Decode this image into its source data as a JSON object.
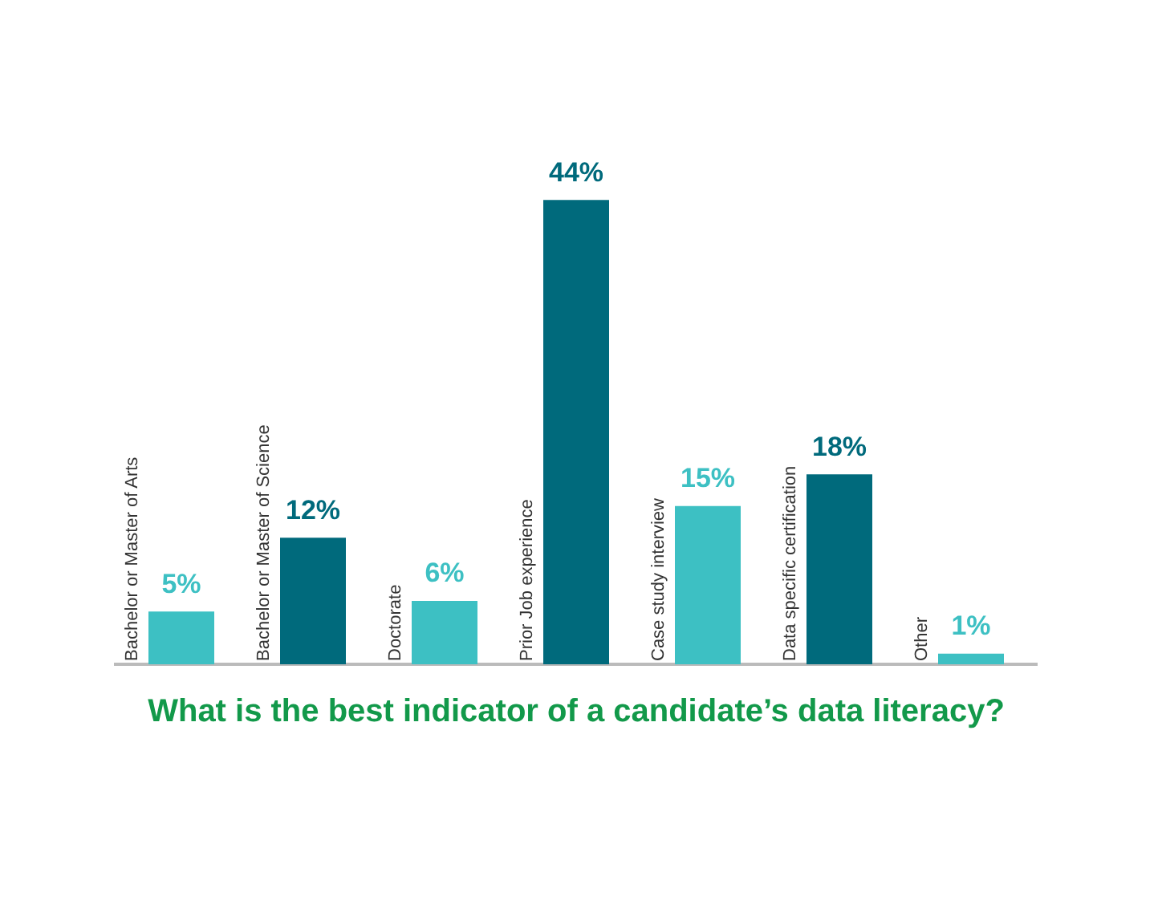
{
  "chart_data": {
    "type": "bar",
    "title": "What is the best indicator of a candidate’s data literacy?",
    "categories": [
      "Bachelor or Master of Arts",
      "Bachelor or Master of Science",
      "Doctorate",
      "Prior Job experience",
      "Case study interview",
      "Data specific certification",
      "Other"
    ],
    "values": [
      5,
      12,
      6,
      44,
      15,
      18,
      1
    ],
    "colors": [
      "#3dc0c3",
      "#006a7c",
      "#3dc0c3",
      "#006a7c",
      "#3dc0c3",
      "#006a7c",
      "#3dc0c3"
    ],
    "value_labels": [
      "5%",
      "12%",
      "6%",
      "44%",
      "15%",
      "18%",
      "1%"
    ],
    "legend": false,
    "grid": false
  }
}
